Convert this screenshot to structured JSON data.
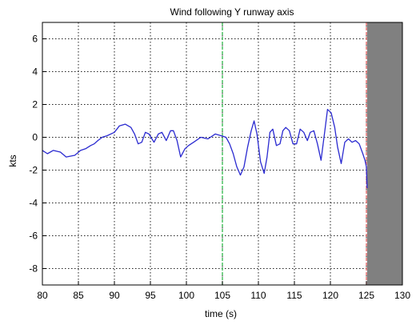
{
  "chart_data": {
    "type": "line",
    "title": "Wind following Y runway axis",
    "xlabel": "time (s)",
    "ylabel": "kts",
    "xlim": [
      80,
      130
    ],
    "ylim": [
      -9,
      7
    ],
    "x_ticks": [
      80,
      85,
      90,
      95,
      100,
      105,
      110,
      115,
      120,
      125,
      130
    ],
    "y_ticks": [
      6,
      4,
      2,
      0,
      -2,
      -4,
      -6,
      -8
    ],
    "y_tick_labels": [
      "6",
      "4",
      "2",
      "0",
      "-2",
      "-4",
      "-6",
      "-8"
    ],
    "grid": true,
    "grid_style": "dotted",
    "markers": [
      {
        "x": 105,
        "color": "#2fb84a",
        "style": "dashed"
      },
      {
        "x": 125,
        "color": "#e06060",
        "style": "dashed"
      }
    ],
    "shaded_region": {
      "x_from": 125.1,
      "x_to": 130,
      "color": "#808080"
    },
    "series": [
      {
        "color": "#2a2ad0",
        "x": [
          80,
          80.7,
          81.5,
          82.5,
          83.3,
          84.5,
          85.3,
          86,
          86.7,
          87.2,
          87.7,
          88.3,
          89,
          90,
          90.7,
          91.5,
          92.3,
          92.8,
          93.3,
          93.8,
          94.3,
          94.8,
          95.5,
          96.1,
          96.6,
          97.2,
          97.8,
          98.2,
          98.7,
          99.2,
          99.8,
          100.3,
          101,
          102,
          103,
          104,
          104.8,
          105.5,
          106,
          106.5,
          107,
          107.5,
          108,
          108.5,
          109,
          109.4,
          109.8,
          110.3,
          110.8,
          111.2,
          111.6,
          112,
          112.5,
          113,
          113.4,
          113.8,
          114.3,
          114.8,
          115.3,
          115.8,
          116.3,
          116.8,
          117.2,
          117.7,
          118.2,
          118.7,
          119.2,
          119.6,
          120.1,
          120.6,
          121,
          121.5,
          122,
          122.5,
          123,
          123.5,
          124,
          124.5,
          124.8,
          125,
          125.1
        ],
        "y": [
          -0.8,
          -1.0,
          -0.8,
          -0.9,
          -1.2,
          -1.1,
          -0.8,
          -0.7,
          -0.5,
          -0.4,
          -0.2,
          0.0,
          0.1,
          0.3,
          0.7,
          0.8,
          0.6,
          0.2,
          -0.4,
          -0.3,
          0.3,
          0.2,
          -0.3,
          0.2,
          0.3,
          -0.2,
          0.4,
          0.4,
          -0.2,
          -1.2,
          -0.7,
          -0.5,
          -0.3,
          0.0,
          -0.1,
          0.2,
          0.1,
          0.0,
          -0.4,
          -1.0,
          -1.8,
          -2.3,
          -1.8,
          -0.6,
          0.4,
          1.0,
          0.2,
          -1.5,
          -2.2,
          -1.2,
          0.3,
          0.5,
          -0.5,
          -0.4,
          0.4,
          0.6,
          0.4,
          -0.4,
          -0.4,
          0.5,
          0.3,
          -0.2,
          0.3,
          0.4,
          -0.4,
          -1.4,
          0.3,
          1.7,
          1.5,
          0.6,
          -0.6,
          -1.6,
          -0.3,
          -0.1,
          -0.3,
          -0.2,
          -0.4,
          -1.0,
          -1.4,
          -1.8,
          -3.1
        ]
      }
    ]
  }
}
